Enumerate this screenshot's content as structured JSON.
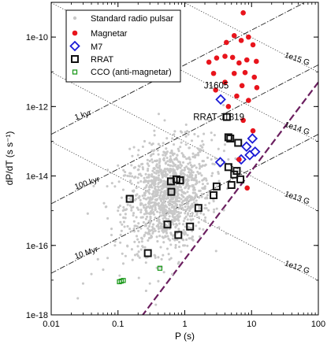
{
  "chart_data": {
    "type": "scatter",
    "xlabel": "P (s)",
    "ylabel": "dP/dT (s s⁻¹)",
    "xscale": "log",
    "yscale": "log",
    "xlim": [
      0.01,
      100
    ],
    "ylim": [
      1e-18,
      1e-09
    ],
    "x_ticks": [
      {
        "value": 0.01,
        "label": "0.01"
      },
      {
        "value": 0.1,
        "label": "0.1"
      },
      {
        "value": 1,
        "label": "1"
      },
      {
        "value": 10,
        "label": "10"
      },
      {
        "value": 100,
        "label": "100"
      }
    ],
    "y_ticks": [
      {
        "value": 1e-18,
        "label": "1e-18"
      },
      {
        "value": 1e-16,
        "label": "1e-16"
      },
      {
        "value": 1e-14,
        "label": "1e-14"
      },
      {
        "value": 1e-12,
        "label": "1e-12"
      },
      {
        "value": 1e-10,
        "label": "1e-10"
      }
    ],
    "legend_position": "top-left",
    "colors": {
      "pulsar": "#c8c8c8",
      "magnetar": "#e8141c",
      "m7": "#1a1ad6",
      "rrat": "#111111",
      "cco": "#1e9a1e",
      "death_line": "#6b1f5f"
    },
    "series": [
      {
        "name": "Standard radio pulsar",
        "marker": "dot",
        "points": [
          [
            0.025,
            3e-18
          ],
          [
            0.03,
            8e-18
          ],
          [
            0.04,
            1.5e-17
          ],
          [
            0.05,
            4e-17
          ],
          [
            0.06,
            2e-17
          ],
          [
            0.07,
            6e-16
          ],
          [
            0.08,
            3e-16
          ],
          [
            0.09,
            5e-15
          ],
          [
            0.1,
            2e-14
          ],
          [
            0.1,
            1e-15
          ],
          [
            0.12,
            4e-15
          ],
          [
            0.13,
            8e-16
          ],
          [
            0.15,
            1.2e-14
          ],
          [
            0.15,
            3e-16
          ],
          [
            0.16,
            6e-15
          ],
          [
            0.18,
            2e-15
          ],
          [
            0.2,
            4e-14
          ],
          [
            0.2,
            1.5e-14
          ],
          [
            0.22,
            7e-15
          ],
          [
            0.22,
            9e-16
          ],
          [
            0.25,
            3e-15
          ],
          [
            0.25,
            2e-16
          ],
          [
            0.28,
            1.6e-14
          ],
          [
            0.3,
            5e-15
          ],
          [
            0.3,
            1.2e-15
          ],
          [
            0.32,
            8e-14
          ],
          [
            0.33,
            2.5e-14
          ],
          [
            0.35,
            9e-15
          ],
          [
            0.35,
            3e-16
          ],
          [
            0.38,
            1.4e-14
          ],
          [
            0.4,
            4e-15
          ],
          [
            0.4,
            6e-16
          ],
          [
            0.42,
            2e-14
          ],
          [
            0.45,
            7e-15
          ],
          [
            0.45,
            1.5e-15
          ],
          [
            0.48,
            3e-14
          ],
          [
            0.5,
            1e-14
          ],
          [
            0.5,
            2.5e-15
          ],
          [
            0.5,
            4e-16
          ],
          [
            0.55,
            5e-14
          ],
          [
            0.55,
            1.6e-14
          ],
          [
            0.58,
            6e-15
          ],
          [
            0.6,
            2e-14
          ],
          [
            0.6,
            9e-16
          ],
          [
            0.62,
            3.5e-15
          ],
          [
            0.65,
            1.2e-13
          ],
          [
            0.65,
            8e-15
          ],
          [
            0.7,
            3e-14
          ],
          [
            0.7,
            1.2e-14
          ],
          [
            0.7,
            2e-16
          ],
          [
            0.72,
            5e-15
          ],
          [
            0.75,
            2e-15
          ],
          [
            0.78,
            1.8e-14
          ],
          [
            0.8,
            6e-14
          ],
          [
            0.8,
            7e-15
          ],
          [
            0.85,
            2.5e-14
          ],
          [
            0.85,
            1.2e-15
          ],
          [
            0.9,
            1e-14
          ],
          [
            0.9,
            4e-15
          ],
          [
            0.95,
            4e-14
          ],
          [
            1.0,
            1.5e-14
          ],
          [
            1.0,
            6e-16
          ],
          [
            1.05,
            3e-13
          ],
          [
            1.1,
            8e-15
          ],
          [
            1.1,
            2.5e-15
          ],
          [
            1.2,
            3e-14
          ],
          [
            1.2,
            1.1e-14
          ],
          [
            1.3,
            5e-15
          ],
          [
            1.3,
            1.5e-16
          ],
          [
            1.4,
            1.6e-13
          ],
          [
            1.4,
            2e-14
          ],
          [
            1.5,
            7e-15
          ],
          [
            1.5,
            1.5e-15
          ],
          [
            1.6,
            4e-14
          ],
          [
            1.7,
            1.2e-14
          ],
          [
            1.8,
            3e-15
          ],
          [
            1.9,
            8e-14
          ],
          [
            2.0,
            2e-14
          ],
          [
            2.0,
            5e-16
          ],
          [
            2.2,
            6e-15
          ],
          [
            2.3,
            4e-13
          ],
          [
            2.5,
            3e-14
          ],
          [
            2.6,
            1.2e-14
          ],
          [
            2.8,
            1.5e-13
          ],
          [
            3.0,
            5e-15
          ],
          [
            3.2,
            6e-14
          ],
          [
            3.5,
            2e-14
          ],
          [
            3.8,
            1.1e-12
          ],
          [
            4.0,
            8e-14
          ],
          [
            4.5,
            3e-14
          ],
          [
            5.0,
            1.2e-13
          ],
          [
            0.35,
            2e-13
          ],
          [
            0.5,
            4e-13
          ],
          [
            0.25,
            1e-13
          ],
          [
            0.15,
            6e-14
          ],
          [
            0.12,
            3e-17
          ],
          [
            0.09,
            1e-16
          ],
          [
            0.3,
            8e-18
          ],
          [
            0.45,
            4e-17
          ],
          [
            0.65,
            1.5e-17
          ],
          [
            0.2,
            5e-17
          ],
          [
            0.55,
            8e-17
          ],
          [
            0.8,
            3e-17
          ],
          [
            1.0,
            1e-16
          ],
          [
            0.07,
            1.5e-14
          ]
        ]
      },
      {
        "name": "Magnetar",
        "marker": "filled-circle",
        "points": [
          [
            7.5,
            5e-10
          ],
          [
            5.5,
            1.1e-10
          ],
          [
            4.2,
            7e-11
          ],
          [
            7.0,
            8e-11
          ],
          [
            9.0,
            1e-10
          ],
          [
            10.5,
            6e-11
          ],
          [
            3.0,
            2.5e-11
          ],
          [
            4.0,
            2.8e-11
          ],
          [
            5.2,
            2.6e-11
          ],
          [
            2.3,
            1.9e-11
          ],
          [
            6.5,
            1.8e-11
          ],
          [
            8.5,
            2.2e-11
          ],
          [
            11.8,
            2e-11
          ],
          [
            2.7,
            9e-12
          ],
          [
            5.5,
            9e-12
          ],
          [
            8.0,
            9.5e-12
          ],
          [
            11.0,
            7e-12
          ],
          [
            4.0,
            5e-12
          ],
          [
            7.2,
            4e-12
          ],
          [
            12.0,
            3.5e-12
          ],
          [
            2.9,
            3e-12
          ],
          [
            6.0,
            2e-12
          ],
          [
            9.0,
            1.5e-12
          ],
          [
            4.5,
            1e-12
          ],
          [
            7.5,
            4e-13
          ],
          [
            10.5,
            2e-13
          ],
          [
            6.5,
            3e-14
          ],
          [
            8.6,
            4.5e-15
          ]
        ]
      },
      {
        "name": "M7",
        "marker": "open-diamond",
        "points": [
          [
            3.45,
            1.6e-12
          ],
          [
            10.3,
            1.2e-13
          ],
          [
            8.4,
            7e-14
          ],
          [
            11.3,
            5e-14
          ],
          [
            7.0,
            3e-14
          ],
          [
            9.4,
            4e-14
          ],
          [
            3.4,
            2.5e-14
          ]
        ]
      },
      {
        "name": "RRAT",
        "marker": "open-square",
        "points": [
          [
            4.26,
            5e-13
          ],
          [
            4.5,
            1.3e-13
          ],
          [
            4.8,
            1.2e-13
          ],
          [
            6.3,
            9e-14
          ],
          [
            4.5,
            1.8e-14
          ],
          [
            6.0,
            1.4e-14
          ],
          [
            5.5,
            1.1e-14
          ],
          [
            6.8,
            8e-15
          ],
          [
            5.0,
            5.5e-15
          ],
          [
            3.0,
            5e-15
          ],
          [
            2.7,
            2.8e-15
          ],
          [
            0.62,
            7e-15
          ],
          [
            0.75,
            8e-15
          ],
          [
            0.85,
            7.5e-15
          ],
          [
            0.63,
            3.5e-15
          ],
          [
            0.15,
            2.2e-15
          ],
          [
            0.55,
            4e-16
          ],
          [
            0.8,
            2e-16
          ],
          [
            1.2,
            3.5e-16
          ],
          [
            1.6,
            1.2e-15
          ],
          [
            0.28,
            6e-17
          ]
        ]
      },
      {
        "name": "CCO (anti-magnetar)",
        "marker": "open-small-square",
        "points": [
          [
            0.105,
            9e-18
          ],
          [
            0.112,
            9.4e-18
          ],
          [
            0.12,
            9.8e-18
          ],
          [
            0.424,
            2.2e-17
          ]
        ]
      }
    ],
    "reference_lines": {
      "age": [
        {
          "label": "1 kyr"
        },
        {
          "label": "100 kyr"
        },
        {
          "label": "10 Myr"
        }
      ],
      "field": [
        {
          "label": "1e15 G"
        },
        {
          "label": "1e14 G"
        },
        {
          "label": "1e13 G"
        },
        {
          "label": "1e12 G"
        }
      ]
    },
    "annotations": [
      {
        "text": "J1605",
        "x": 3.0,
        "y": 3e-12
      },
      {
        "text": "RRAT J1819",
        "x": 1.2,
        "y": 5e-13
      }
    ]
  }
}
